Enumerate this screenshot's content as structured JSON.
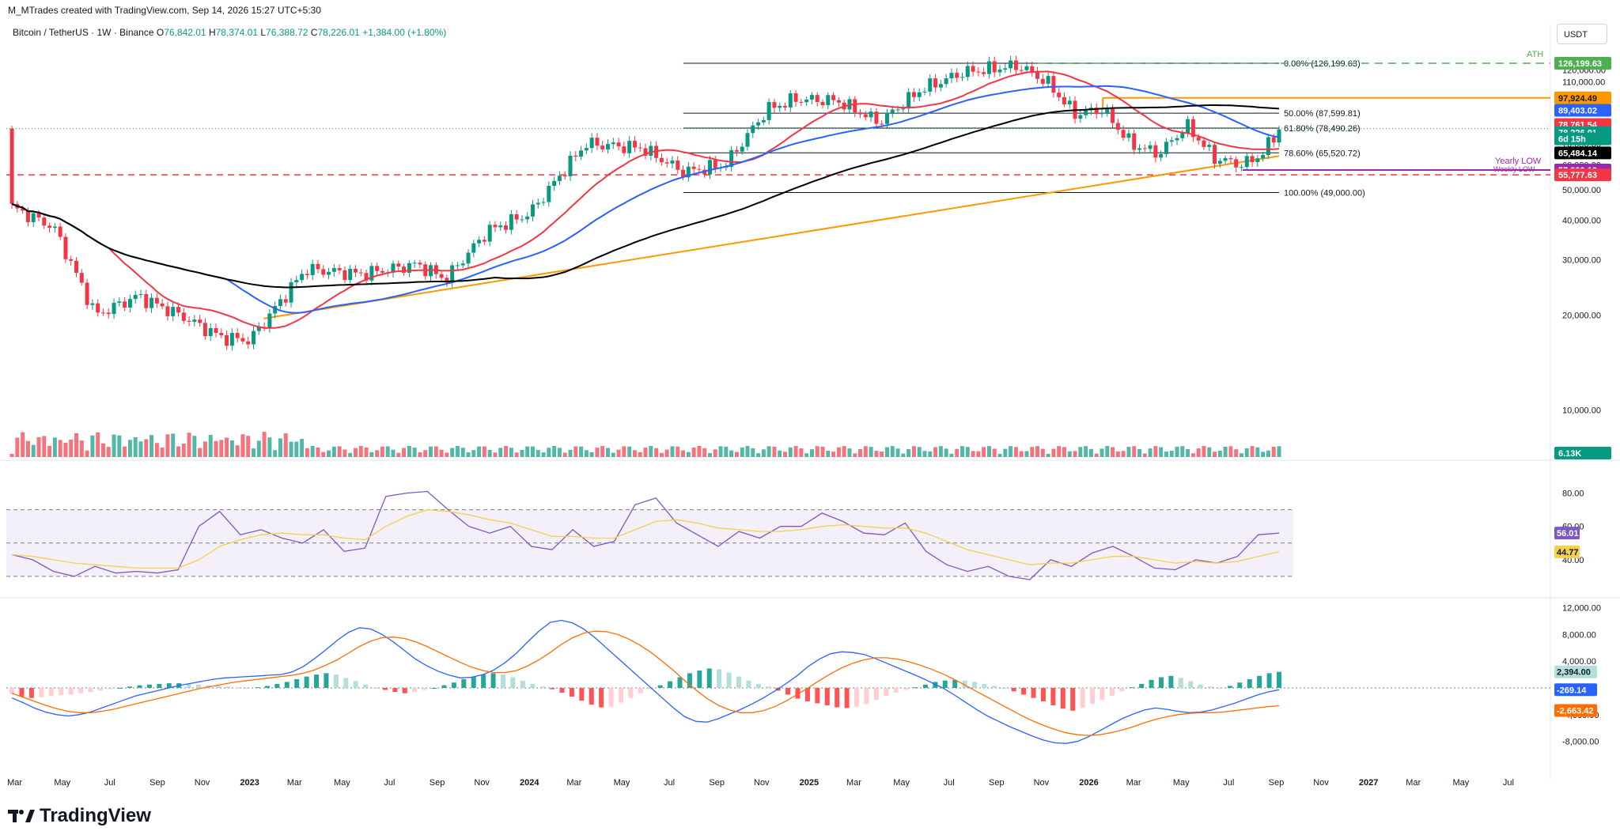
{
  "header": {
    "credit": "M_MTrades created with TradingView.com, Sep 14, 2026 15:27 UTC+5:30",
    "symbol": "Bitcoin / TetherUS · 1W · Binance",
    "o_label": "O",
    "o_value": "76,842.01",
    "h_label": "H",
    "h_value": "78,374.01",
    "l_label": "L",
    "l_value": "76,388.72",
    "c_label": "C",
    "c_value": "78,226.01",
    "change": "+1,384.00 (+1.80%)"
  },
  "currency": "USDT",
  "brand": "TradingView",
  "colors": {
    "up": "#089981",
    "down": "#f23645",
    "ema50": "#f23645",
    "ema100": "#2962ff",
    "ema200": "#000000",
    "trend": "#ff9800",
    "ath": "#4caf50",
    "rsi": "#7e57c2",
    "rsi_ma": "#f5d049",
    "macd": "#2962ff",
    "signal": "#ff6d00"
  },
  "chart_data": [
    {
      "type": "candlestick",
      "title": "Bitcoin / TetherUS · 1W · Binance",
      "x_ticks": [
        "Mar",
        "May",
        "Jul",
        "Sep",
        "Nov",
        "2023",
        "Mar",
        "May",
        "Jul",
        "Sep",
        "Nov",
        "2024",
        "Mar",
        "May",
        "Jul",
        "Sep",
        "Nov",
        "2025",
        "Mar",
        "May",
        "Jul",
        "Sep",
        "Nov",
        "2026",
        "Mar",
        "May",
        "Jul",
        "Sep",
        "Nov",
        "2027",
        "Mar",
        "May",
        "Jul"
      ],
      "y_ticks": [
        "120,000.00",
        "110,000.00",
        "100,000.00",
        "90,000.00",
        "80,000.00",
        "70,000.00",
        "60,000.00",
        "50,000.00",
        "40,000.00",
        "30,000.00",
        "20,000.00",
        "10,000.00"
      ],
      "y_ticks_values": [
        120000,
        110000,
        100000,
        90000,
        80000,
        70000,
        60000,
        50000,
        40000,
        30000,
        20000,
        10000
      ],
      "scale": "log",
      "ylim": [
        7000,
        140000
      ],
      "price_path_approx": [
        [
          2022.15,
          44000
        ],
        [
          2022.3,
          38000
        ],
        [
          2022.45,
          20000
        ],
        [
          2022.6,
          23000
        ],
        [
          2022.75,
          20000
        ],
        [
          2022.9,
          17000
        ],
        [
          2023.0,
          16600
        ],
        [
          2023.2,
          28000
        ],
        [
          2023.4,
          27000
        ],
        [
          2023.6,
          29000
        ],
        [
          2023.7,
          26000
        ],
        [
          2023.85,
          37000
        ],
        [
          2024.0,
          42000
        ],
        [
          2024.2,
          70000
        ],
        [
          2024.4,
          68000
        ],
        [
          2024.55,
          57000
        ],
        [
          2024.7,
          60000
        ],
        [
          2024.85,
          90000
        ],
        [
          2024.95,
          97000
        ],
        [
          2025.1,
          96000
        ],
        [
          2025.25,
          82000
        ],
        [
          2025.4,
          104000
        ],
        [
          2025.55,
          118000
        ],
        [
          2025.75,
          124000
        ],
        [
          2025.85,
          110000
        ],
        [
          2025.95,
          87000
        ],
        [
          2026.05,
          90000
        ],
        [
          2026.15,
          70000
        ],
        [
          2026.25,
          65000
        ],
        [
          2026.35,
          80000
        ],
        [
          2026.45,
          63000
        ],
        [
          2026.55,
          60000
        ],
        [
          2026.62,
          65000
        ],
        [
          2026.68,
          78226
        ]
      ],
      "fibonacci": [
        {
          "label": "0.00% (126,199.63)",
          "value": 126199.63
        },
        {
          "label": "50.00% (87,599.81)",
          "value": 87599.81
        },
        {
          "label": "61.80% (78,490.26)",
          "value": 78490.26
        },
        {
          "label": "78.60% (65,520.72)",
          "value": 65520.72
        },
        {
          "label": "100.00% (49,000.00)",
          "value": 49000
        }
      ],
      "annotations": [
        "ATH",
        "Yearly LOW",
        "Weekly LOW"
      ],
      "price_labels": [
        {
          "text": "126,199.63",
          "value": 126199.63,
          "color": "#4caf50"
        },
        {
          "text": "97,924.49",
          "value": 97924.49,
          "color": "#ff9800"
        },
        {
          "text": "89,403.02",
          "value": 89403.02,
          "color": "#2962ff"
        },
        {
          "text": "78,761.54",
          "value": 78761.54,
          "color": "#f23645"
        },
        {
          "text": "78,226.01",
          "value": 78226.01,
          "color": "#089981"
        },
        {
          "text": "6d 15h",
          "value": null,
          "color": "#089981"
        },
        {
          "text": "65,484.14",
          "value": 65484.14,
          "color": "#000000"
        },
        {
          "text": "57,800.19",
          "value": 57800.19,
          "color": "#9c27b0"
        },
        {
          "text": "55,777.63",
          "value": 55777.63,
          "color": "#f23645"
        },
        {
          "text": "6.13K",
          "value": 6130,
          "color": "#089981"
        }
      ],
      "resistance_level": 97924.49,
      "support_dashed": 55777.63,
      "yearly_low": 57800.19
    },
    {
      "type": "line",
      "title": "RSI",
      "y_ticks": [
        "80.00",
        "60.00",
        "40.00"
      ],
      "y_ticks_values": [
        80,
        60,
        40
      ],
      "band": [
        30,
        70
      ],
      "ylim": [
        20,
        95
      ],
      "series": [
        {
          "values": [
            43,
            40,
            33,
            30,
            36,
            32,
            33,
            32,
            34,
            60,
            69,
            55,
            58,
            53,
            50,
            58,
            45,
            47,
            78,
            80,
            81,
            70,
            60,
            56,
            60,
            48,
            46,
            58,
            48,
            51,
            73,
            77,
            62,
            55,
            48,
            57,
            53,
            60,
            60,
            68,
            63,
            56,
            55,
            62,
            45,
            37,
            33,
            36,
            30,
            28,
            40,
            36,
            44,
            48,
            42,
            35,
            34,
            40,
            38,
            42,
            55,
            56
          ],
          "label_value": "56.01"
        },
        {
          "values": [
            43,
            42,
            40,
            38,
            37,
            36,
            35,
            35,
            35,
            40,
            48,
            52,
            55,
            56,
            55,
            55,
            53,
            52,
            60,
            66,
            70,
            69,
            67,
            64,
            62,
            58,
            54,
            54,
            53,
            53,
            58,
            63,
            64,
            62,
            59,
            58,
            57,
            57,
            58,
            60,
            61,
            60,
            59,
            59,
            56,
            51,
            46,
            43,
            40,
            37,
            38,
            38,
            40,
            42,
            42,
            40,
            38,
            39,
            38,
            39,
            42,
            44.77
          ],
          "label_value": "44.77"
        }
      ]
    },
    {
      "type": "bar",
      "title": "MACD",
      "y_ticks": [
        "12,000.00",
        "8,000.00",
        "4,000.00",
        "-4,000.00",
        "-8,000.00"
      ],
      "y_ticks_values": [
        12000,
        8000,
        4000,
        -4000,
        -8000
      ],
      "ylim": [
        -13000,
        13000
      ],
      "histogram": [
        -900,
        -1300,
        -1500,
        -1400,
        -1200,
        -1100,
        -1000,
        -800,
        -600,
        -400,
        -200,
        0,
        200,
        400,
        500,
        600,
        700,
        700,
        600,
        500,
        400,
        300,
        200,
        100,
        0,
        100,
        300,
        600,
        900,
        1300,
        1700,
        2000,
        2200,
        2000,
        1500,
        1000,
        500,
        0,
        -300,
        -600,
        -800,
        -600,
        -300,
        0,
        400,
        800,
        1300,
        1700,
        2000,
        2200,
        2000,
        1600,
        1100,
        600,
        200,
        -200,
        -700,
        -1300,
        -1900,
        -2500,
        -2900,
        -2800,
        -2200,
        -1500,
        -800,
        -200,
        400,
        1000,
        1600,
        2200,
        2600,
        2900,
        2800,
        2300,
        1700,
        1100,
        600,
        200,
        -400,
        -1000,
        -1600,
        -2000,
        -2300,
        -2600,
        -2900,
        -3000,
        -2800,
        -2400,
        -1800,
        -1200,
        -700,
        -300,
        100,
        500,
        900,
        1100,
        1200,
        1100,
        900,
        600,
        300,
        0,
        -500,
        -1000,
        -1500,
        -2000,
        -2600,
        -3100,
        -3400,
        -3000,
        -2400,
        -1800,
        -1200,
        -500,
        100,
        600,
        1200,
        1600,
        1800,
        1500,
        1000,
        500,
        200,
        0,
        300,
        800,
        1300,
        1800,
        2200,
        2394
      ],
      "series": [
        {
          "values": [
            -1500,
            -2200,
            -3000,
            -3600,
            -4000,
            -4200,
            -4000,
            -3600,
            -3000,
            -2400,
            -1800,
            -1200,
            -800,
            -400,
            0,
            400,
            700,
            1000,
            1300,
            1500,
            1600,
            1700,
            1800,
            1900,
            2000,
            2400,
            3200,
            4400,
            5700,
            7100,
            8300,
            9000,
            8800,
            8000,
            6900,
            5600,
            4300,
            3300,
            2500,
            1900,
            1500,
            1600,
            2000,
            2700,
            3800,
            5200,
            6900,
            8500,
            9800,
            10100,
            9700,
            8800,
            7500,
            6000,
            4500,
            3000,
            1500,
            0,
            -1500,
            -3000,
            -4300,
            -5000,
            -5100,
            -4600,
            -3900,
            -3200,
            -2400,
            -1500,
            -500,
            600,
            1800,
            3200,
            4300,
            5100,
            5400,
            5300,
            5000,
            4400,
            3700,
            3000,
            2300,
            1600,
            800,
            0,
            -1000,
            -2100,
            -3200,
            -4200,
            -5000,
            -5800,
            -6500,
            -7200,
            -7800,
            -8200,
            -8300,
            -8000,
            -7300,
            -6400,
            -5500,
            -4600,
            -3900,
            -3300,
            -3000,
            -3200,
            -3500,
            -3700,
            -3600,
            -3300,
            -2800,
            -2300,
            -1700,
            -1100,
            -600,
            -269.14
          ],
          "label_value": "-269.14"
        },
        {
          "values": [
            -800,
            -1400,
            -2000,
            -2600,
            -3100,
            -3500,
            -3700,
            -3700,
            -3500,
            -3200,
            -2800,
            -2400,
            -2000,
            -1600,
            -1200,
            -800,
            -400,
            0,
            300,
            600,
            900,
            1100,
            1300,
            1500,
            1700,
            1900,
            2200,
            2700,
            3400,
            4200,
            5200,
            6200,
            7000,
            7500,
            7600,
            7400,
            6900,
            6200,
            5400,
            4600,
            3800,
            3100,
            2600,
            2300,
            2300,
            2600,
            3300,
            4200,
            5300,
            6500,
            7500,
            8200,
            8500,
            8400,
            8000,
            7300,
            6400,
            5300,
            4000,
            2600,
            1100,
            -300,
            -1600,
            -2600,
            -3300,
            -3700,
            -3700,
            -3400,
            -2800,
            -2000,
            -1000,
            0,
            1100,
            2100,
            3000,
            3700,
            4200,
            4500,
            4500,
            4300,
            3900,
            3400,
            2800,
            2100,
            1300,
            400,
            -500,
            -1400,
            -2300,
            -3200,
            -4100,
            -4900,
            -5600,
            -6200,
            -6700,
            -7000,
            -7100,
            -7000,
            -6700,
            -6300,
            -5800,
            -5200,
            -4700,
            -4300,
            -4000,
            -3800,
            -3700,
            -3700,
            -3600,
            -3400,
            -3200,
            -3000,
            -2800,
            -2663.42
          ],
          "label_value": "-2,663.42"
        }
      ]
    }
  ]
}
